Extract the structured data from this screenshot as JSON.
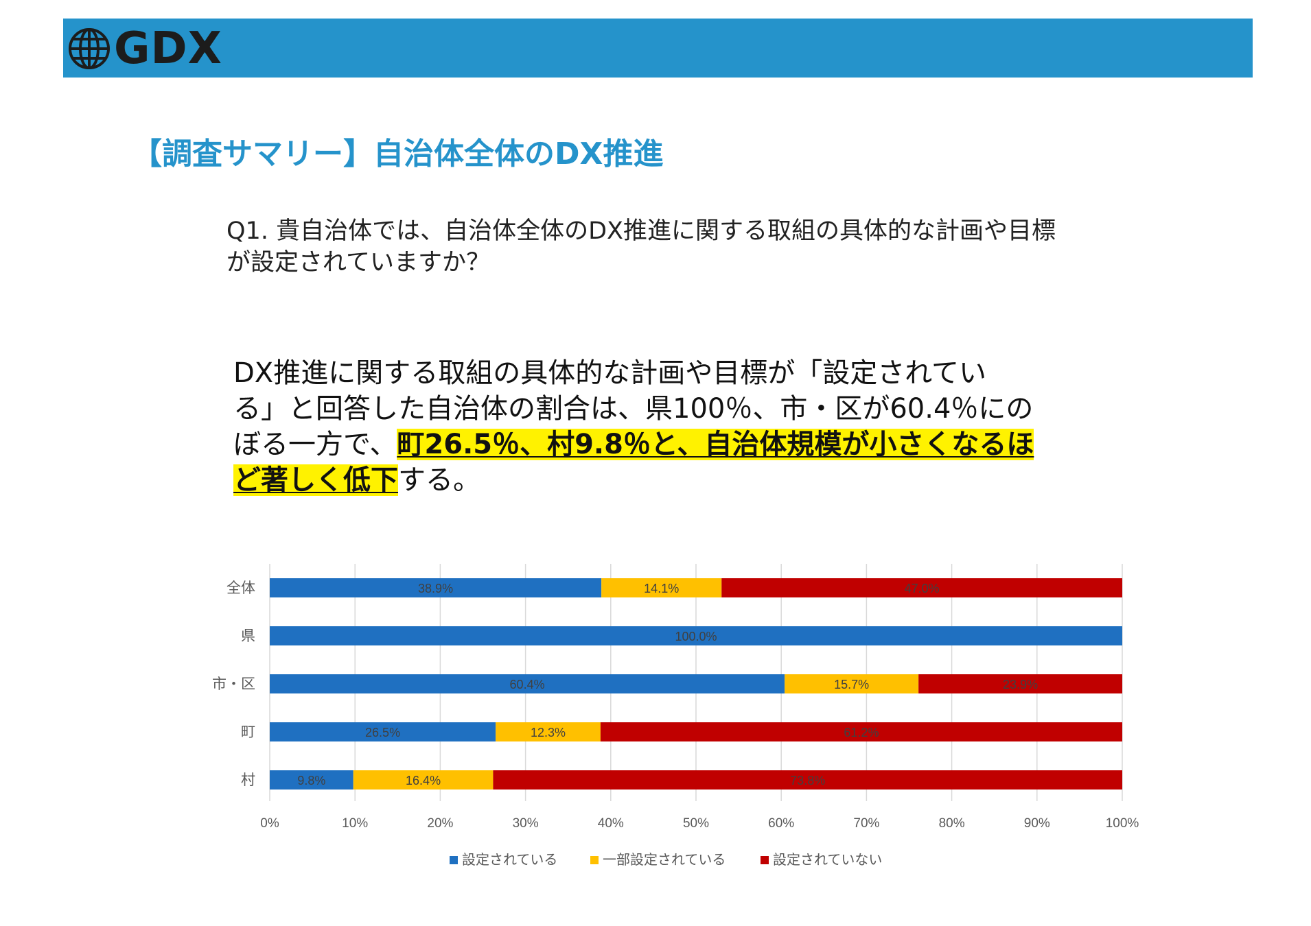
{
  "header": {
    "logo_text": "GDX",
    "bar_color": "#2593cb",
    "logo_icon": "globe-icon"
  },
  "title": "【調査サマリー】自治体全体のDX推進",
  "question": {
    "line1": "Q1. 貴自治体では、自治体全体のDX推進に関する取組の具体的な計画や目標",
    "line2": "が設定されていますか？"
  },
  "summary": {
    "line1": "DX推進に関する取組の具体的な計画や目標が「設定されてい",
    "line2": "る」と回答した自治体の割合は、県100％、市・区が60.4％にの",
    "line3_plain": "ぼる一方で、",
    "line3_highlight": "町26.5％、村9.8％と、自治体規模が小さくなるほ",
    "line4_highlight": "ど著しく低下",
    "line4_plain": "する。"
  },
  "chart_data": {
    "type": "bar",
    "orientation": "horizontal",
    "stacked": "100%",
    "categories": [
      "全体",
      "県",
      "市・区",
      "町",
      "村"
    ],
    "series": [
      {
        "name": "設定されている",
        "color": "#1f70c1",
        "values": [
          38.9,
          100.0,
          60.4,
          26.5,
          9.8
        ],
        "labels": [
          "38.9%",
          "100.0%",
          "60.4%",
          "26.5%",
          "9.8%"
        ]
      },
      {
        "name": "一部設定されている",
        "color": "#ffc000",
        "values": [
          14.1,
          0,
          15.7,
          12.3,
          16.4
        ],
        "labels": [
          "14.1%",
          "",
          "15.7%",
          "12.3%",
          "16.4%"
        ]
      },
      {
        "name": "設定されていない",
        "color": "#c00000",
        "values": [
          47.0,
          0,
          23.9,
          61.2,
          73.8
        ],
        "labels": [
          "47.0%",
          "",
          "23.9%",
          "61.2%",
          "73.8%"
        ]
      }
    ],
    "xticks": [
      "0%",
      "10%",
      "20%",
      "30%",
      "40%",
      "50%",
      "60%",
      "70%",
      "80%",
      "90%",
      "100%"
    ],
    "xlim": [
      0,
      100
    ],
    "grid": true,
    "legend_position": "bottom"
  }
}
